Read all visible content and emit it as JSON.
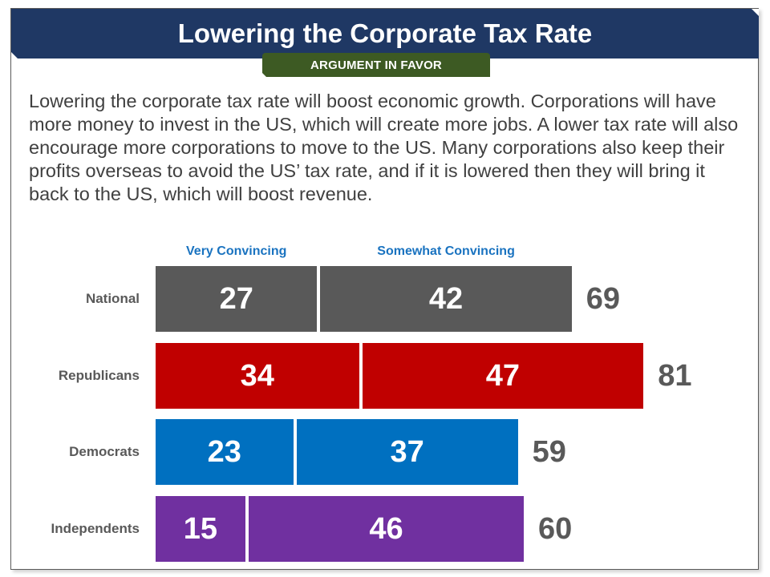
{
  "header": {
    "title": "Lowering the Corporate Tax Rate",
    "badge": "ARGUMENT IN FAVOR"
  },
  "body_text": "Lowering the corporate tax rate will boost economic growth. Corporations will have more money to invest in the US, which will create more jobs. A lower tax rate will also encourage more corporations to move to the US. Many corporations also keep their profits overseas to avoid the US’ tax rate, and if it is lowered then they will bring it back to the US, which will boost revenue.",
  "colors": {
    "header_bg": "#1f3864",
    "badge_bg": "#3d5a23",
    "column_header": "#1a73c0",
    "label_gray": "#595959"
  },
  "chart_data": {
    "type": "bar",
    "orientation": "horizontal",
    "stacked": true,
    "title": "",
    "categories": [
      "National",
      "Republicans",
      "Democrats",
      "Independents"
    ],
    "series": [
      {
        "name": "Very Convincing",
        "values": [
          27,
          34,
          23,
          15
        ]
      },
      {
        "name": "Somewhat Convincing",
        "values": [
          42,
          47,
          37,
          46
        ]
      }
    ],
    "totals": [
      69,
      81,
      59,
      60
    ],
    "category_colors": [
      "#595959",
      "#c00000",
      "#0070c0",
      "#7030a0"
    ],
    "xlim": [
      0,
      100
    ],
    "grid": false,
    "legend": "top (column headers above bars)",
    "unit": "percent"
  }
}
